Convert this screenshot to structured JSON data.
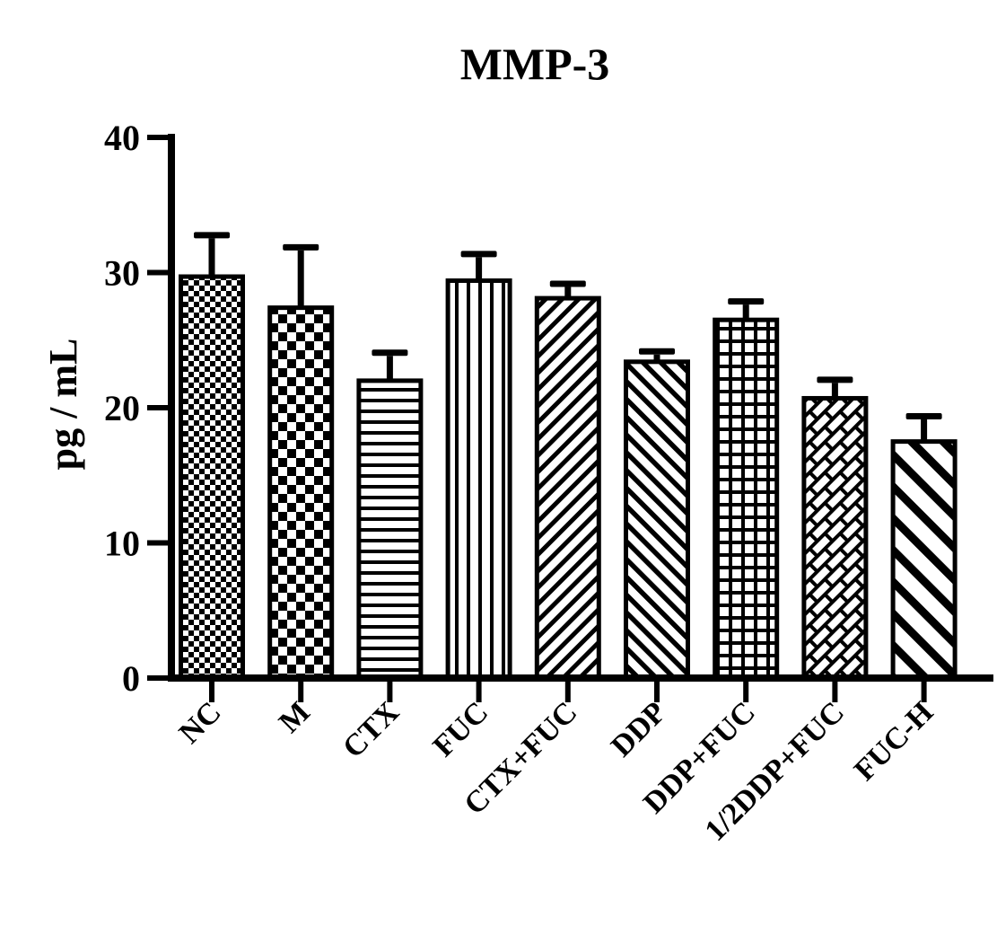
{
  "title": "MMP-3",
  "chart_data": {
    "type": "bar",
    "title": "MMP-3",
    "xlabel": "",
    "ylabel": "pg / mL",
    "ylim": [
      0,
      40
    ],
    "yticks": [
      0,
      10,
      20,
      30,
      40
    ],
    "grid": false,
    "legend_position": "none",
    "bar_fill_color": "#ffffff",
    "bar_outline_color": "#000000",
    "error_bar_style": "upper-sd-with-cap",
    "categories": [
      "NC",
      "M",
      "CTX",
      "FUC",
      "CTX+FUC",
      "DDP",
      "DDP+FUC",
      "1/2DDP+FUC",
      "FUC-H"
    ],
    "series": [
      {
        "name": "MMP-3",
        "values": [
          29.7,
          27.4,
          22.0,
          29.4,
          28.1,
          23.4,
          26.5,
          20.7,
          17.5
        ],
        "errors_plus": [
          3.3,
          4.7,
          2.3,
          2.2,
          1.3,
          1.0,
          1.6,
          1.6,
          2.1
        ]
      }
    ],
    "bar_patterns": [
      "checkerboard-fine",
      "checkerboard-coarse",
      "horizontal-lines",
      "vertical-lines",
      "diagonal-stripes-up",
      "diagonal-stripes-down",
      "grid-squares",
      "diagonal-bricks",
      "diagonal-stripes-down-wide"
    ]
  }
}
